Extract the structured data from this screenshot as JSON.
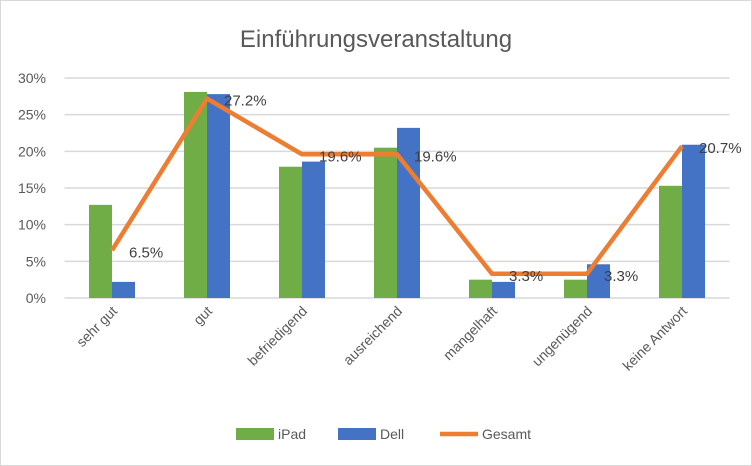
{
  "chart_data": {
    "type": "bar",
    "title": "Einführungsveranstaltung",
    "xlabel": "",
    "ylabel": "",
    "ylim": [
      0,
      30
    ],
    "yticks": [
      "0%",
      "5%",
      "10%",
      "15%",
      "20%",
      "25%",
      "30%"
    ],
    "categories": [
      "sehr gut",
      "gut",
      "befriedigend",
      "ausreichend",
      "mangelhaft",
      "ungenügend",
      "keine Antwort"
    ],
    "series": [
      {
        "name": "iPad",
        "type": "bar",
        "color": "#70ad47",
        "values": [
          12.7,
          28.1,
          17.9,
          20.5,
          2.5,
          2.5,
          15.3
        ]
      },
      {
        "name": "Dell",
        "type": "bar",
        "color": "#4472c4",
        "values": [
          2.2,
          27.8,
          18.6,
          23.2,
          2.2,
          4.6,
          20.9
        ]
      },
      {
        "name": "Gesamt",
        "type": "line",
        "color": "#ed7d31",
        "values": [
          6.5,
          27.2,
          19.6,
          19.6,
          3.3,
          3.3,
          20.7
        ],
        "labels": [
          "6.5%",
          "27.2%",
          "19.6%",
          "19.6%",
          "3.3%",
          "3.3%",
          "20.7%"
        ]
      }
    ],
    "grid": true,
    "legend": "bottom"
  }
}
